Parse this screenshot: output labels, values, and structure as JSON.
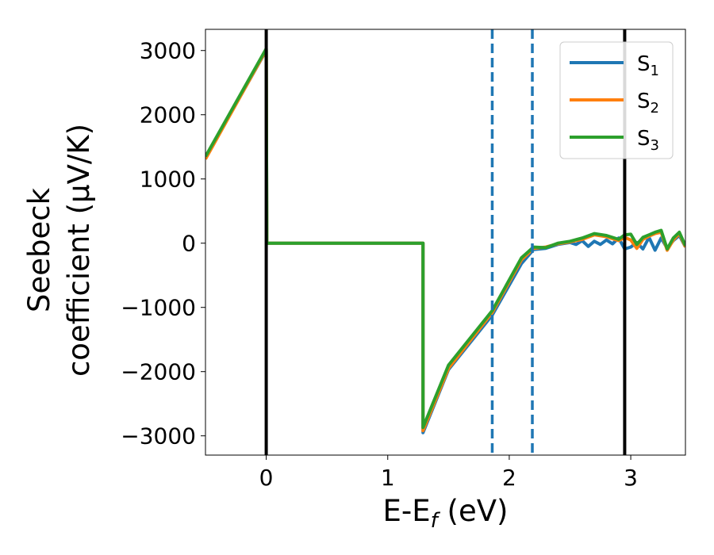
{
  "chart_data": {
    "type": "line",
    "xlabel_main": "E-E",
    "xlabel_sub": "f",
    "xlabel_unit": " (eV)",
    "ylabel_line1": "Seebeck",
    "ylabel_line2": "coefficient  (μV/K)",
    "xlim": [
      -0.5,
      3.45
    ],
    "ylim": [
      -3300,
      3330
    ],
    "xticks": [
      0,
      1,
      2,
      3
    ],
    "yticks": [
      -3000,
      -2000,
      -1000,
      0,
      1000,
      2000,
      3000
    ],
    "xtick_labels": [
      "0",
      "1",
      "2",
      "3"
    ],
    "ytick_labels": [
      "−3000",
      "−2000",
      "−1000",
      "0",
      "1000",
      "2000",
      "3000"
    ],
    "vlines_solid": [
      0,
      2.95
    ],
    "vlines_dashed": [
      1.86,
      2.19
    ],
    "vline_solid_color": "#000000",
    "vline_dashed_color": "#1f77b4",
    "grid": false,
    "legend_position": "top-right",
    "series": [
      {
        "name": "S",
        "sub": "1",
        "color": "#1f77b4",
        "x": [
          -0.5,
          0.0,
          0.005,
          1.29,
          1.29,
          1.5,
          1.86,
          2.1,
          2.2,
          2.3,
          2.4,
          2.5,
          2.55,
          2.6,
          2.65,
          2.7,
          2.75,
          2.8,
          2.85,
          2.9,
          2.95,
          3.0,
          3.05,
          3.1,
          3.15,
          3.2,
          3.25,
          3.3,
          3.35,
          3.4,
          3.45
        ],
        "y": [
          1330,
          3000,
          0,
          0,
          -2950,
          -1970,
          -1120,
          -320,
          -100,
          -80,
          -20,
          10,
          -20,
          40,
          -50,
          30,
          -20,
          50,
          -10,
          80,
          -90,
          -60,
          10,
          -90,
          90,
          -110,
          80,
          -80,
          40,
          120,
          -60
        ]
      },
      {
        "name": "S",
        "sub": "2",
        "color": "#ff7f0e",
        "x": [
          -0.5,
          0.0,
          0.005,
          1.29,
          1.29,
          1.5,
          1.86,
          2.1,
          2.2,
          2.3,
          2.4,
          2.5,
          2.6,
          2.7,
          2.8,
          2.9,
          2.95,
          3.0,
          3.05,
          3.1,
          3.15,
          3.2,
          3.25,
          3.3,
          3.35,
          3.4,
          3.45
        ],
        "y": [
          1310,
          3010,
          0,
          0,
          -2920,
          -1950,
          -1080,
          -260,
          -80,
          -60,
          -10,
          20,
          60,
          130,
          100,
          40,
          90,
          50,
          -80,
          60,
          110,
          150,
          170,
          -110,
          50,
          150,
          -60
        ]
      },
      {
        "name": "S",
        "sub": "3",
        "color": "#2ca02c",
        "x": [
          -0.5,
          0.0,
          0.005,
          1.29,
          1.29,
          1.5,
          1.86,
          2.1,
          2.2,
          2.3,
          2.4,
          2.5,
          2.6,
          2.7,
          2.8,
          2.9,
          2.95,
          3.0,
          3.05,
          3.1,
          3.15,
          3.2,
          3.25,
          3.3,
          3.35,
          3.4,
          3.45
        ],
        "y": [
          1350,
          3030,
          0,
          0,
          -2870,
          -1900,
          -1050,
          -230,
          -60,
          -70,
          0,
          30,
          80,
          150,
          120,
          60,
          130,
          140,
          -20,
          90,
          130,
          170,
          200,
          -90,
          80,
          170,
          -40
        ]
      }
    ]
  }
}
